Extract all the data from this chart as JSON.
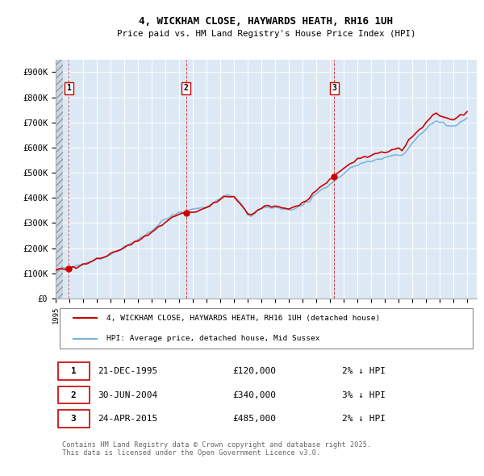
{
  "title_line1": "4, WICKHAM CLOSE, HAYWARDS HEATH, RH16 1UH",
  "title_line2": "Price paid vs. HM Land Registry's House Price Index (HPI)",
  "ylim": [
    0,
    950000
  ],
  "yticks": [
    0,
    100000,
    200000,
    300000,
    400000,
    500000,
    600000,
    700000,
    800000,
    900000
  ],
  "ytick_labels": [
    "£0",
    "£100K",
    "£200K",
    "£300K",
    "£400K",
    "£500K",
    "£600K",
    "£700K",
    "£800K",
    "£900K"
  ],
  "xlim_start": 1995.0,
  "xlim_end": 2025.7,
  "xtick_years": [
    1995,
    1996,
    1997,
    1998,
    1999,
    2000,
    2001,
    2002,
    2003,
    2004,
    2005,
    2006,
    2007,
    2008,
    2009,
    2010,
    2011,
    2012,
    2013,
    2014,
    2015,
    2016,
    2017,
    2018,
    2019,
    2020,
    2021,
    2022,
    2023,
    2024,
    2025
  ],
  "background_color": "#ffffff",
  "plot_bg_color": "#dce9f5",
  "grid_color": "#ffffff",
  "sale_color": "#cc0000",
  "hpi_color": "#7ab0d4",
  "sale_linewidth": 1.2,
  "hpi_linewidth": 1.2,
  "legend_label_sale": "4, WICKHAM CLOSE, HAYWARDS HEATH, RH16 1UH (detached house)",
  "legend_label_hpi": "HPI: Average price, detached house, Mid Sussex",
  "transactions": [
    {
      "label": "1",
      "date": "21-DEC-1995",
      "price": 120000,
      "pct": "2%",
      "dir": "↓",
      "year": 1995.97
    },
    {
      "label": "2",
      "date": "30-JUN-2004",
      "price": 340000,
      "pct": "3%",
      "dir": "↓",
      "year": 2004.5
    },
    {
      "label": "3",
      "date": "24-APR-2015",
      "price": 485000,
      "pct": "2%",
      "dir": "↓",
      "year": 2015.31
    }
  ],
  "hatch_end": 1995.5,
  "footnote": "Contains HM Land Registry data © Crown copyright and database right 2025.\nThis data is licensed under the Open Government Licence v3.0."
}
